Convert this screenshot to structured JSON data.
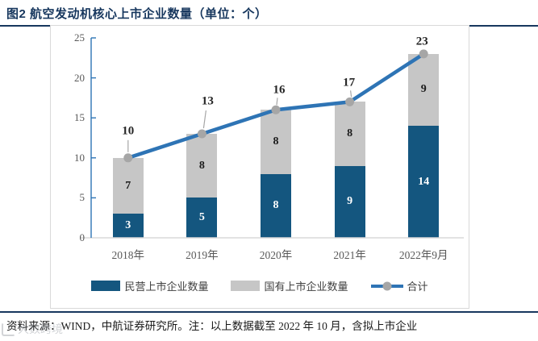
{
  "title": "图2 航空发动机核心上市企业数量（单位：个）",
  "source_note": "资料来源：WIND，中航证券研究所。注：以上数据截至 2022 年 10 月，含拟上市企业",
  "watermark": "大数跨境",
  "colors": {
    "accent_navy": "#17375E",
    "bar_private": "#14567F",
    "bar_state": "#C6C6C6",
    "total_line": "#2E74B5",
    "marker": "#A6A6A6",
    "axis_text": "#595959",
    "panel_border": "#D9D9D9"
  },
  "chart_data": {
    "type": "bar",
    "stacked": true,
    "title": "航空发动机核心上市企业数量",
    "unit": "个",
    "categories": [
      "2018年",
      "2019年",
      "2020年",
      "2021年",
      "2022年9月"
    ],
    "series": [
      {
        "name": "民营上市企业数量",
        "type": "bar",
        "color": "#14567F",
        "values": [
          3,
          5,
          8,
          9,
          14
        ]
      },
      {
        "name": "国有上市企业数量",
        "type": "bar",
        "color": "#C6C6C6",
        "values": [
          7,
          8,
          8,
          8,
          9
        ]
      },
      {
        "name": "合计",
        "type": "line",
        "color": "#2E74B5",
        "values": [
          10,
          13,
          16,
          17,
          23
        ]
      }
    ],
    "ylim": [
      0,
      25
    ],
    "yticks": [
      0,
      5,
      10,
      15,
      20,
      25
    ],
    "grid": false,
    "legend_position": "bottom"
  }
}
